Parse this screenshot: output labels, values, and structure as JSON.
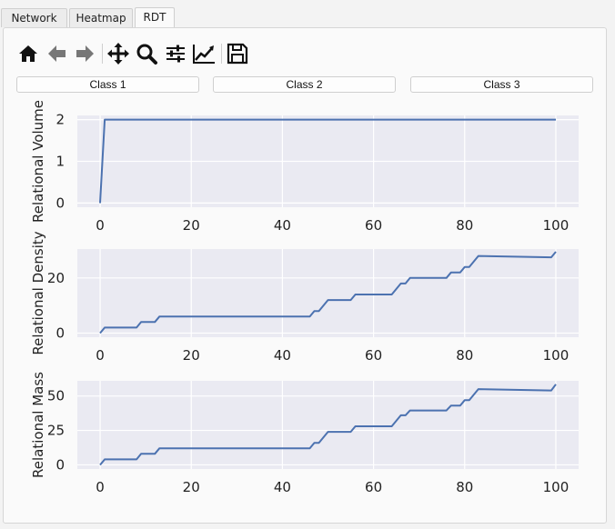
{
  "tabs": [
    {
      "label": "Network",
      "active": false
    },
    {
      "label": "Heatmap",
      "active": false
    },
    {
      "label": "RDT",
      "active": true
    }
  ],
  "toolbar": [
    {
      "icon": "home-icon",
      "tooltip": "Home"
    },
    {
      "icon": "back-arrow-icon",
      "tooltip": "Back"
    },
    {
      "icon": "forward-arrow-icon",
      "tooltip": "Forward"
    },
    {
      "icon": "pan-icon",
      "tooltip": "Pan"
    },
    {
      "icon": "zoom-icon",
      "tooltip": "Zoom"
    },
    {
      "icon": "configure-subplots-icon",
      "tooltip": "Configure subplots"
    },
    {
      "icon": "edit-axis-icon",
      "tooltip": "Edit axis"
    },
    {
      "icon": "save-icon",
      "tooltip": "Save"
    }
  ],
  "class_buttons": [
    {
      "label": "Class 1"
    },
    {
      "label": "Class 2"
    },
    {
      "label": "Class 3"
    }
  ],
  "colors": {
    "plot_bg": "#eaeaf2",
    "grid": "#ffffff",
    "line": "#4c72b0"
  },
  "chart_data": [
    {
      "type": "line",
      "title": "",
      "xlabel": "",
      "ylabel": "Relational Volume",
      "xlim": [
        -5,
        105
      ],
      "ylim": [
        -0.1,
        2.1
      ],
      "xticks": [
        0,
        20,
        40,
        60,
        80,
        100
      ],
      "yticks": [
        0,
        1,
        2
      ],
      "grid": true,
      "series": [
        {
          "x": [
            0,
            1,
            100
          ],
          "y": [
            0,
            2,
            2
          ]
        }
      ]
    },
    {
      "type": "line",
      "title": "",
      "xlabel": "",
      "ylabel": "Relational Density",
      "xlim": [
        -5,
        105
      ],
      "ylim": [
        -1.5,
        30.5
      ],
      "xticks": [
        0,
        20,
        40,
        60,
        80,
        100
      ],
      "yticks": [
        0,
        20
      ],
      "grid": true,
      "series": [
        {
          "x": [
            0,
            1,
            8,
            9,
            12,
            13,
            46,
            47,
            48,
            50,
            55,
            56,
            64,
            66,
            67,
            68,
            76,
            77,
            79,
            80,
            81,
            83,
            99,
            100
          ],
          "y": [
            0,
            2,
            2,
            4,
            4,
            6,
            6,
            8,
            8,
            12,
            12,
            14,
            14,
            18,
            18,
            20,
            20,
            22,
            22,
            24,
            24,
            28,
            27.5,
            29.5
          ]
        }
      ]
    },
    {
      "type": "line",
      "title": "",
      "xlabel": "",
      "ylabel": "Relational Mass",
      "xlim": [
        -5,
        105
      ],
      "ylim": [
        -3,
        61
      ],
      "xticks": [
        0,
        20,
        40,
        60,
        80,
        100
      ],
      "yticks": [
        0,
        25,
        50
      ],
      "grid": true,
      "series": [
        {
          "x": [
            0,
            1,
            8,
            9,
            12,
            13,
            46,
            47,
            48,
            50,
            55,
            56,
            64,
            66,
            67,
            68,
            76,
            77,
            79,
            80,
            81,
            83,
            99,
            100
          ],
          "y": [
            0,
            4,
            4,
            8,
            8,
            12,
            12,
            16,
            16,
            24,
            24,
            28,
            28,
            36,
            36,
            39.5,
            39.5,
            43,
            43,
            47,
            47,
            55,
            54,
            58.5
          ]
        }
      ]
    }
  ]
}
